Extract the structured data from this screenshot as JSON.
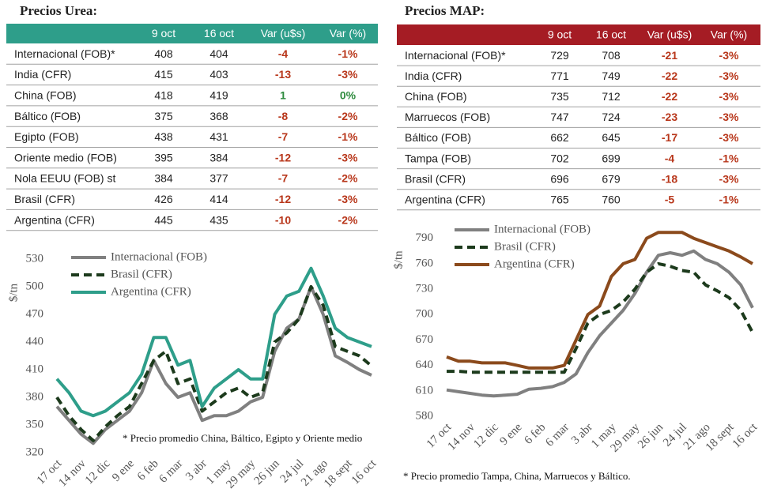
{
  "urea_table": {
    "title": "Precios Urea:",
    "header_color": "#2e9e8a",
    "columns": [
      "9 oct",
      "16 oct",
      "Var (u$s)",
      "Var (%)"
    ],
    "rows": [
      [
        "Internacional (FOB)*",
        408,
        404,
        -4,
        "-1%"
      ],
      [
        "India (CFR)",
        415,
        403,
        -13,
        "-3%"
      ],
      [
        "China (FOB)",
        418,
        419,
        1,
        "0%"
      ],
      [
        "Báltico (FOB)",
        375,
        368,
        -8,
        "-2%"
      ],
      [
        "Egipto (FOB)",
        438,
        431,
        -7,
        "-1%"
      ],
      [
        "Oriente medio (FOB)",
        395,
        384,
        -12,
        "-3%"
      ],
      [
        "Nola EEUU (FOB) st",
        384,
        377,
        -7,
        "-2%"
      ],
      [
        "Brasil (CFR)",
        426,
        414,
        -12,
        "-3%"
      ],
      [
        "Argentina (CFR)",
        445,
        435,
        -10,
        "-2%"
      ]
    ]
  },
  "map_table": {
    "title": "Precios MAP:",
    "header_color": "#a51c24",
    "columns": [
      "9 oct",
      "16 oct",
      "Var (u$s)",
      "Var (%)"
    ],
    "rows": [
      [
        "Internacional (FOB)*",
        729,
        708,
        -21,
        "-3%"
      ],
      [
        "India (CFR)",
        771,
        749,
        -22,
        "-3%"
      ],
      [
        "China (FOB)",
        735,
        712,
        -22,
        "-3%"
      ],
      [
        "Marruecos (FOB)",
        747,
        724,
        -23,
        "-3%"
      ],
      [
        "Báltico (FOB)",
        662,
        645,
        -17,
        "-3%"
      ],
      [
        "Tampa (FOB)",
        702,
        699,
        -4,
        "-1%"
      ],
      [
        "Brasil (CFR)",
        696,
        679,
        -18,
        "-3%"
      ],
      [
        "Argentina (CFR)",
        765,
        760,
        -5,
        "-1%"
      ]
    ]
  },
  "chart_data": [
    {
      "type": "line",
      "y_label": "$/tn",
      "note": "* Precio promedio China, Báltico, Egipto y Oriente medio",
      "categories": [
        "17 oct",
        null,
        "14 nov",
        null,
        "12 dic",
        null,
        "9 ene",
        null,
        "6 feb",
        null,
        "6 mar",
        null,
        "3 abr",
        null,
        "1 may",
        null,
        "29 may",
        null,
        "26 jun",
        null,
        "24 jul",
        null,
        "21 ago",
        null,
        "18 sept",
        null,
        "16 oct"
      ],
      "ylim": [
        320,
        530
      ],
      "yticks": [
        320,
        350,
        380,
        410,
        440,
        470,
        500,
        530
      ],
      "series": [
        {
          "name": "Internacional (FOB)",
          "color": "#808080",
          "dash": false,
          "values": [
            370,
            355,
            340,
            330,
            345,
            355,
            365,
            385,
            420,
            395,
            380,
            385,
            355,
            360,
            360,
            365,
            375,
            380,
            430,
            455,
            465,
            500,
            470,
            425,
            418,
            410,
            404
          ]
        },
        {
          "name": "Brasil (CFR)",
          "color": "#1c3a1c",
          "dash": true,
          "values": [
            380,
            360,
            345,
            333,
            348,
            360,
            370,
            395,
            420,
            430,
            395,
            400,
            365,
            375,
            385,
            390,
            380,
            385,
            440,
            450,
            465,
            500,
            480,
            435,
            430,
            425,
            414
          ]
        },
        {
          "name": "Argentina (CFR)",
          "color": "#2e9e8a",
          "dash": false,
          "values": [
            400,
            385,
            365,
            360,
            365,
            375,
            385,
            405,
            445,
            445,
            415,
            420,
            370,
            390,
            400,
            410,
            400,
            400,
            470,
            490,
            495,
            520,
            490,
            455,
            445,
            440,
            435
          ]
        }
      ]
    },
    {
      "type": "line",
      "y_label": "$/tn",
      "note": "* Precio promedio Tampa, China, Marruecos y Báltico.",
      "categories": [
        "17 oct",
        null,
        "14 nov",
        null,
        "12 dic",
        null,
        "9 ene",
        null,
        "6 feb",
        null,
        "6 mar",
        null,
        "3 abr",
        null,
        "1 may",
        null,
        "29 may",
        null,
        "26 jun",
        null,
        "24 jul",
        null,
        "21 ago",
        null,
        "18 sept",
        null,
        "16 oct"
      ],
      "ylim": [
        580,
        800
      ],
      "yticks": [
        580,
        610,
        640,
        670,
        700,
        730,
        760,
        790
      ],
      "series": [
        {
          "name": "Internacional (FOB)",
          "color": "#808080",
          "dash": false,
          "values": [
            611,
            609,
            607,
            605,
            604,
            605,
            606,
            612,
            613,
            615,
            620,
            630,
            655,
            675,
            690,
            705,
            725,
            750,
            770,
            773,
            770,
            775,
            765,
            760,
            750,
            735,
            708
          ]
        },
        {
          "name": "Brasil (CFR)",
          "color": "#1c3a1c",
          "dash": true,
          "values": [
            633,
            633,
            632,
            632,
            632,
            632,
            632,
            632,
            632,
            632,
            632,
            660,
            690,
            700,
            705,
            715,
            730,
            750,
            760,
            757,
            752,
            750,
            735,
            728,
            720,
            705,
            679
          ]
        },
        {
          "name": "Argentina (CFR)",
          "color": "#8b4a1c",
          "dash": false,
          "values": [
            650,
            645,
            645,
            643,
            643,
            643,
            640,
            637,
            637,
            637,
            640,
            670,
            700,
            710,
            745,
            760,
            765,
            790,
            797,
            797,
            797,
            790,
            785,
            780,
            775,
            768,
            760
          ]
        }
      ]
    }
  ]
}
